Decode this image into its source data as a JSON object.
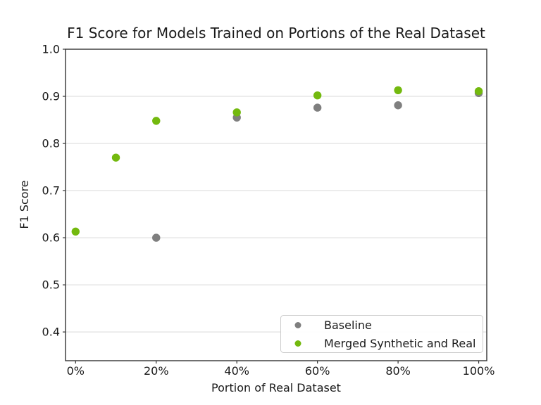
{
  "figure": {
    "background": "#ffffff"
  },
  "chart_data": {
    "type": "scatter",
    "title": "F1 Score for Models Trained on Portions of the Real Dataset",
    "xlabel": "Portion of Real Dataset",
    "ylabel": "F1 Score",
    "xlim": [
      -2.5,
      102
    ],
    "ylim": [
      0.339,
      1.0
    ],
    "xticks": [
      0,
      20,
      40,
      60,
      80,
      100
    ],
    "xtick_labels": [
      "0%",
      "20%",
      "40%",
      "60%",
      "80%",
      "100%"
    ],
    "yticks": [
      0.4,
      0.5,
      0.6,
      0.7,
      0.8,
      0.9,
      1.0
    ],
    "ytick_labels": [
      "0.4",
      "0.5",
      "0.6",
      "0.7",
      "0.8",
      "0.9",
      "1.0"
    ],
    "grid": "horizontal",
    "grid_color": "#d9d9d9",
    "spine_color": "#333333",
    "text_color": "#1a1a1a",
    "series": [
      {
        "name": "Baseline",
        "marker": "circle",
        "color": "#7f7f7f",
        "x": [
          20,
          40,
          60,
          80,
          100
        ],
        "y": [
          0.6,
          0.855,
          0.876,
          0.881,
          0.907
        ]
      },
      {
        "name": "Merged Synthetic and Real",
        "marker": "circle",
        "color": "#73b90e",
        "x": [
          0,
          10,
          20,
          40,
          60,
          80,
          100
        ],
        "y": [
          0.613,
          0.77,
          0.848,
          0.866,
          0.902,
          0.913,
          0.911
        ]
      }
    ],
    "legend": {
      "position": "lower right",
      "border_color": "#cccccc",
      "background": "#ffffff"
    }
  }
}
